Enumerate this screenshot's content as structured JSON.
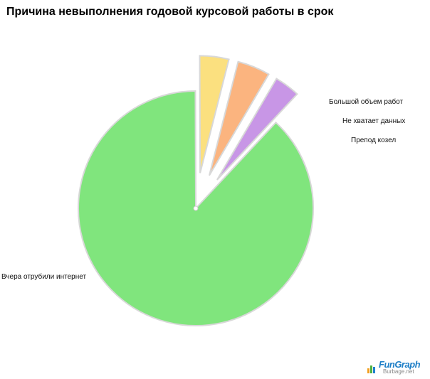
{
  "chart_data": {
    "type": "pie",
    "title": "Причина невыполнения годовой курсовой работы в срок",
    "slices": [
      {
        "label": "Вчера отрубили интернет",
        "value": 88.0,
        "color": "#80e57d",
        "exploded": false
      },
      {
        "label": "Большой объем работ",
        "value": 4.0,
        "color": "#fbe07f",
        "exploded": true
      },
      {
        "label": "Не хватает данных",
        "value": 4.5,
        "color": "#fbb47f",
        "exploded": true
      },
      {
        "label": "Препод козел",
        "value": 3.5,
        "color": "#c896e6",
        "exploded": true
      }
    ],
    "legend": "none"
  },
  "watermark": {
    "logo_text": "FunGraph",
    "sub_text": "Burbage.net"
  }
}
